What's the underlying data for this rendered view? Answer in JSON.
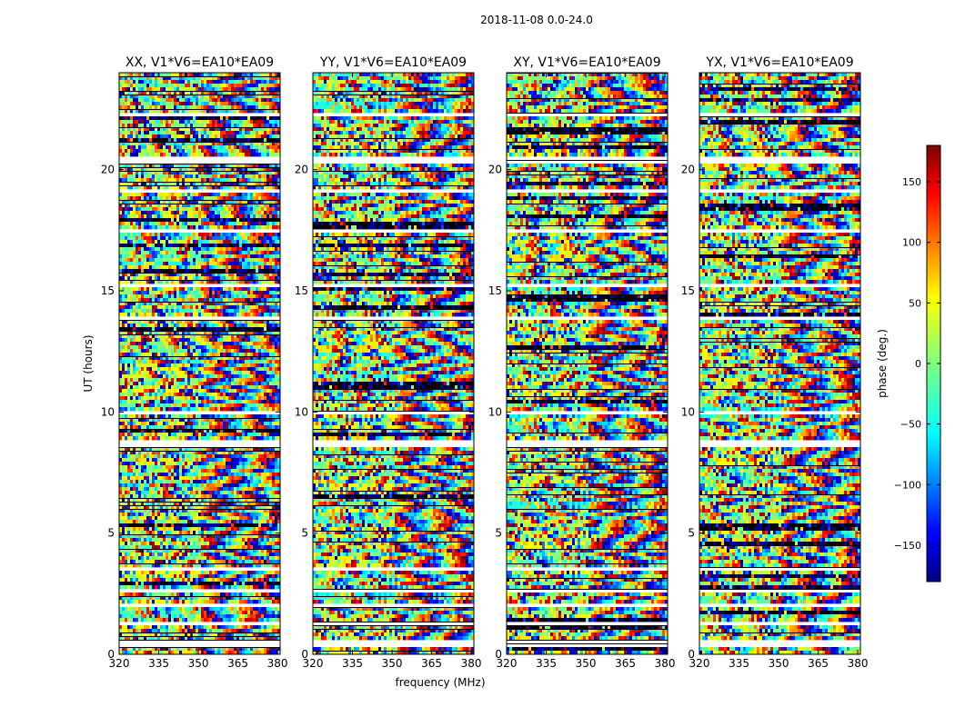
{
  "figure": {
    "suptitle": "2018-11-08 0.0-24.0",
    "xlabel": "frequency (MHz)",
    "ylabel": "UT (hours)"
  },
  "chart_data": {
    "type": "heatmap",
    "title": "2018-11-08 0.0-24.0",
    "xlabel": "frequency (MHz)",
    "ylabel": "UT (hours)",
    "xlim": [
      320,
      381
    ],
    "ylim": [
      0,
      24
    ],
    "xticks": [
      320,
      335,
      350,
      365,
      380
    ],
    "yticks": [
      0,
      5,
      10,
      15,
      20
    ],
    "colormap": "jet",
    "panels": [
      {
        "title": "XX, V1*V6=EA10*EA09"
      },
      {
        "title": "YY, V1*V6=EA10*EA09"
      },
      {
        "title": "XY, V1*V6=EA10*EA09"
      },
      {
        "title": "YX, V1*V6=EA10*EA09"
      }
    ],
    "colorbar": {
      "label": "phase (deg.)",
      "range": [
        -180,
        180
      ],
      "ticks": [
        150,
        100,
        50,
        0,
        -50,
        -100,
        -150
      ],
      "tick_labels": [
        "150",
        "100",
        "50",
        "0",
        "−50",
        "−100",
        "−150"
      ]
    },
    "blank_rows_hours": {
      "XX": [
        0.45,
        1.3,
        2.0,
        2.6,
        3.5,
        8.7,
        10.0,
        13.9,
        15.2,
        17.5,
        19.1,
        20.4,
        22.3
      ],
      "YY": [
        0.45,
        1.3,
        2.0,
        2.6,
        3.5,
        8.7,
        10.0,
        13.9,
        15.2,
        17.5,
        19.1,
        20.4,
        22.3
      ],
      "XY": [
        0.45,
        1.3,
        2.0,
        2.6,
        3.5,
        8.7,
        10.0,
        13.9,
        15.2,
        17.5,
        19.1,
        20.4,
        22.3
      ],
      "YX": [
        0.45,
        1.3,
        2.0,
        2.6,
        3.5,
        8.7,
        10.0,
        13.9,
        15.2,
        17.5,
        19.1,
        20.4,
        22.3
      ]
    },
    "colors": {
      "jet_stops": [
        "#00007f",
        "#0000ff",
        "#007fff",
        "#00ffff",
        "#7fff7f",
        "#ffff00",
        "#ff7f00",
        "#ff0000",
        "#7f0000"
      ],
      "background": "#ffffff",
      "axes": "#000000"
    }
  }
}
